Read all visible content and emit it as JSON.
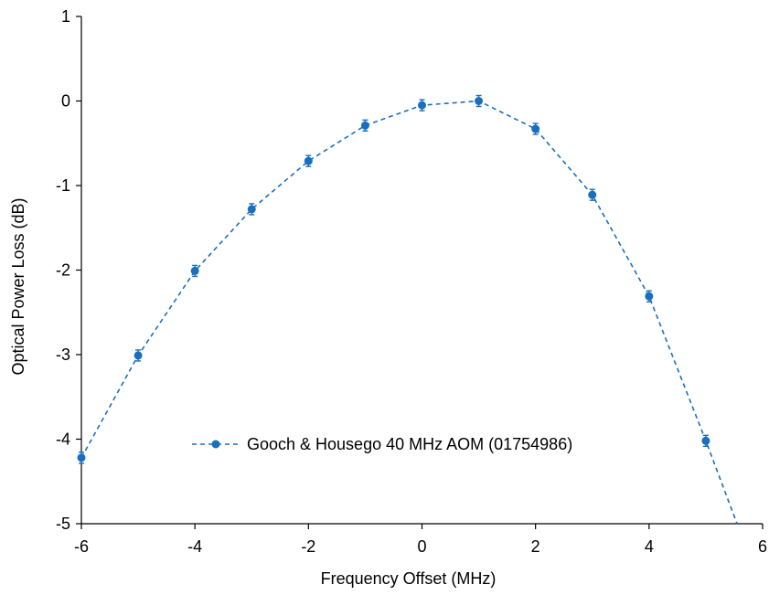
{
  "chart_data": {
    "type": "line",
    "title": "",
    "xlabel": "Frequency Offset (MHz)",
    "ylabel": "Optical Power Loss (dB)",
    "xlim": [
      -6,
      6
    ],
    "ylim": [
      -5,
      1
    ],
    "xticks": [
      "-6",
      "-4",
      "-2",
      "0",
      "2",
      "4",
      "6"
    ],
    "yticks": [
      "1",
      "0",
      "-1",
      "-2",
      "-3",
      "-4",
      "-5"
    ],
    "grid": false,
    "legend_position": "bottom-center",
    "series": [
      {
        "name": "Gooch & Housego 40 MHz AOM (01754986)",
        "color": "#1a6fbd",
        "line_style": "dashed",
        "marker": "circle",
        "error_bars": true,
        "x": [
          -6,
          -5,
          -4,
          -3,
          -2,
          -1,
          0,
          1,
          2,
          3,
          4,
          5,
          5.55
        ],
        "y": [
          -4.22,
          -3.01,
          -2.01,
          -1.28,
          -0.71,
          -0.29,
          -0.05,
          0.0,
          -0.33,
          -1.11,
          -2.31,
          -4.02,
          -5.0
        ]
      }
    ]
  }
}
